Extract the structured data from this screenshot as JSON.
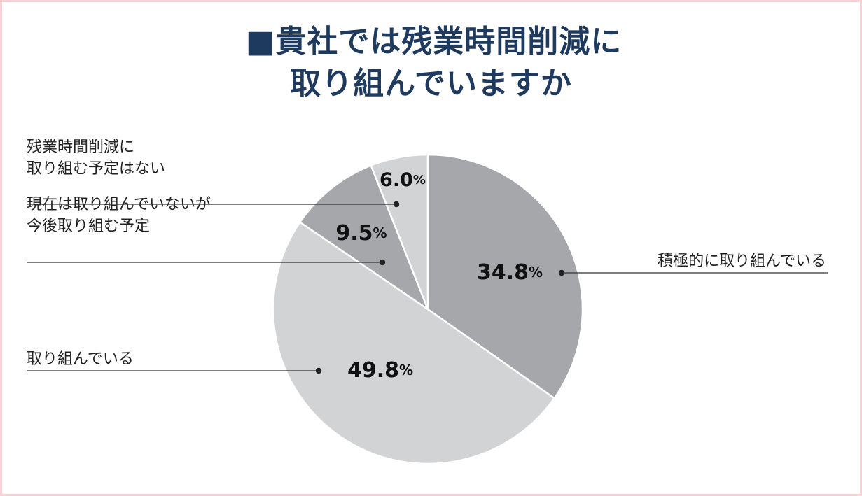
{
  "title": {
    "line1": "■貴社では残業時間削減に",
    "line2": "取り組んでいますか"
  },
  "chart_data": {
    "type": "pie",
    "title": "■貴社では残業時間削減に取り組んでいますか",
    "start_angle_deg": 0,
    "direction": "clockwise",
    "slices": [
      {
        "label": "積極的に取り組んでいる",
        "label_lines": [
          "積極的に取り組んでいる"
        ],
        "value": 34.8,
        "value_text": "34.8",
        "unit": "%",
        "color": "#a6a7aa"
      },
      {
        "label": "取り組んでいる",
        "label_lines": [
          "取り組んでいる"
        ],
        "value": 49.8,
        "value_text": "49.8",
        "unit": "%",
        "color": "#d2d3d5"
      },
      {
        "label": "現在は取り組んでいないが今後取り組む予定",
        "label_lines": [
          "現在は取り組んでいないが",
          "今後取り組む予定"
        ],
        "value": 9.5,
        "value_text": "9.5",
        "unit": "%",
        "color": "#a6a7aa"
      },
      {
        "label": "残業時間削減に取り組む予定はない",
        "label_lines": [
          "残業時間削減に",
          "取り組む予定はない"
        ],
        "value": 6.0,
        "value_text": "6.0",
        "unit": "%",
        "color": "#d2d3d5"
      }
    ],
    "legend": "callouts"
  },
  "colors": {
    "title": "#1f3a5f",
    "frame_border": "#f6d3d6",
    "slice_dark": "#a6a7aa",
    "slice_light": "#d2d3d5",
    "text": "#222222"
  }
}
